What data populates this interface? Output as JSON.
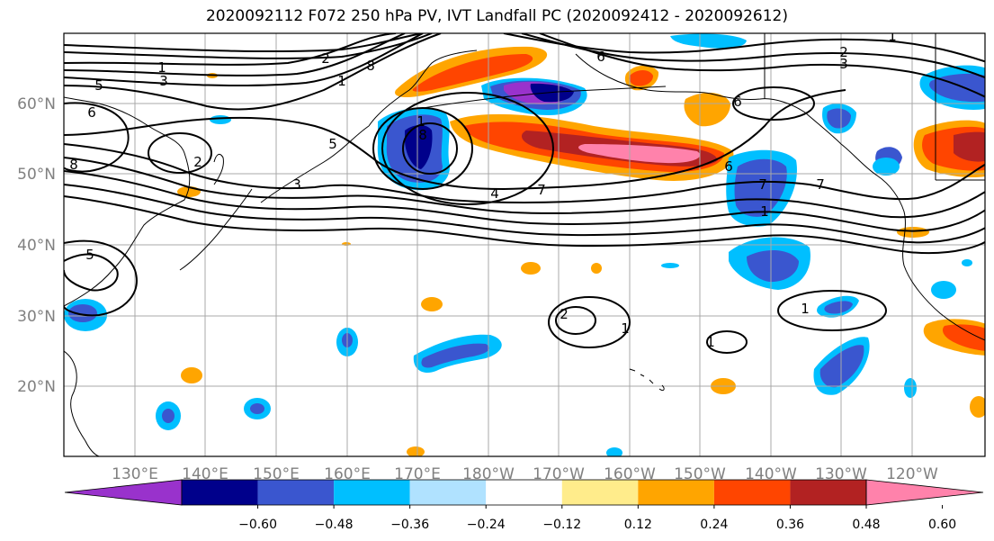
{
  "title": "2020092112 F072 250 hPa PV, IVT Landfall PC (2020092412 - 2020092612)",
  "lat_labels": [
    "60°N",
    "50°N",
    "40°N",
    "30°N",
    "20°N"
  ],
  "lon_labels": [
    "130°E",
    "140°E",
    "150°E",
    "160°E",
    "170°E",
    "180°W",
    "170°W",
    "160°W",
    "150°W",
    "140°W",
    "130°W",
    "120°W"
  ],
  "colorbar": {
    "colors": [
      "#9932cc",
      "#00008b",
      "#3a56cf",
      "#00bfff",
      "#b0e2ff",
      "#ffffff",
      "#ffec8b",
      "#ffa500",
      "#ff4500",
      "#b22222",
      "#ff82ab"
    ],
    "ticks": [
      "−0.60",
      "−0.48",
      "−0.36",
      "−0.24",
      "−0.12",
      "0.12",
      "0.24",
      "0.36",
      "0.48",
      "0.60"
    ]
  },
  "contour_labels": [
    "1",
    "2",
    "3",
    "4",
    "5",
    "6",
    "7",
    "8"
  ]
}
